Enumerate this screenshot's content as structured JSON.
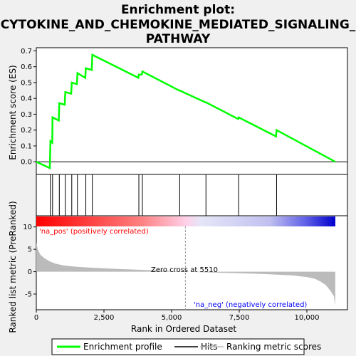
{
  "title_line1": "Enrichment plot:",
  "title_line2": "CYTOKINE_AND_CHEMOKINE_MEDIATED_SIGNALING_",
  "title_line3": "PATHWAY",
  "colors": {
    "es_line": "#00ff00",
    "hits": "#000000",
    "metric_fill": "#bbbbbb",
    "pos_label": "#ff0000",
    "neg_label": "#0000ff",
    "zero_line": "#999999"
  },
  "chart_data": [
    {
      "type": "line",
      "name": "enrichment-profile",
      "ylabel": "Enrichment score (ES)",
      "xlim": [
        0,
        11500
      ],
      "ylim": [
        -0.08,
        0.72
      ],
      "yticks": [
        0.0,
        0.1,
        0.2,
        0.3,
        0.4,
        0.5,
        0.6,
        0.7
      ],
      "ytick_labels": [
        "0.0",
        "0.1",
        "0.2",
        "0.3",
        "0.4",
        "0.5",
        "0.6",
        "0.7"
      ],
      "series": [
        {
          "name": "Enrichment profile",
          "x": [
            0,
            500,
            520,
            590,
            600,
            830,
            850,
            1050,
            1070,
            1290,
            1310,
            1500,
            1520,
            1810,
            1830,
            2050,
            2070,
            3770,
            3790,
            3900,
            3920,
            5280,
            5300,
            6250,
            6270,
            7460,
            7480,
            8860,
            8880,
            11050
          ],
          "y": [
            0.0,
            -0.04,
            0.13,
            0.12,
            0.28,
            0.26,
            0.37,
            0.36,
            0.44,
            0.43,
            0.5,
            0.49,
            0.56,
            0.53,
            0.59,
            0.58,
            0.675,
            0.53,
            0.55,
            0.55,
            0.57,
            0.45,
            0.45,
            0.375,
            0.375,
            0.27,
            0.28,
            0.16,
            0.2,
            0.0
          ]
        }
      ]
    },
    {
      "type": "hits",
      "name": "hits",
      "x": [
        520,
        600,
        850,
        1070,
        1310,
        1520,
        1830,
        2070,
        3790,
        3920,
        5300,
        6270,
        7480,
        8880
      ]
    },
    {
      "type": "area",
      "name": "ranked-list-metric",
      "xlabel": "Rank in Ordered Dataset",
      "ylabel": "Ranked list metric (PreRanked)",
      "xlim": [
        0,
        11500
      ],
      "ylim": [
        -8.5,
        12.5
      ],
      "xticks": [
        0,
        2500,
        5000,
        7500,
        10000
      ],
      "xtick_labels": [
        "0",
        "2,500",
        "5,000",
        "7,500",
        "10,000"
      ],
      "yticks": [
        10,
        5,
        0,
        -5
      ],
      "ytick_labels": [
        "10",
        "5",
        "0",
        "-5"
      ],
      "x": [
        0,
        50,
        150,
        300,
        500,
        700,
        1000,
        1500,
        2000,
        3000,
        4000,
        5000,
        5510,
        6500,
        7500,
        8500,
        9500,
        10000,
        10300,
        10500,
        10700,
        10900,
        11000,
        11050
      ],
      "values": [
        6.5,
        5.0,
        3.8,
        3.0,
        2.3,
        1.8,
        1.4,
        1.1,
        0.9,
        0.6,
        0.4,
        0.15,
        0.0,
        -0.2,
        -0.35,
        -0.55,
        -0.85,
        -1.2,
        -1.6,
        -2.2,
        -3.0,
        -4.5,
        -5.5,
        -7.5
      ]
    }
  ],
  "annotations": {
    "pos_label": "'na_pos' (positively correlated)",
    "neg_label": "'na_neg' (negatively correlated)",
    "zero_cross": "Zero cross at 5510",
    "zero_cross_x": 5510
  },
  "legend": {
    "items": [
      "Enrichment profile",
      "Hits",
      "Ranking metric scores"
    ]
  }
}
